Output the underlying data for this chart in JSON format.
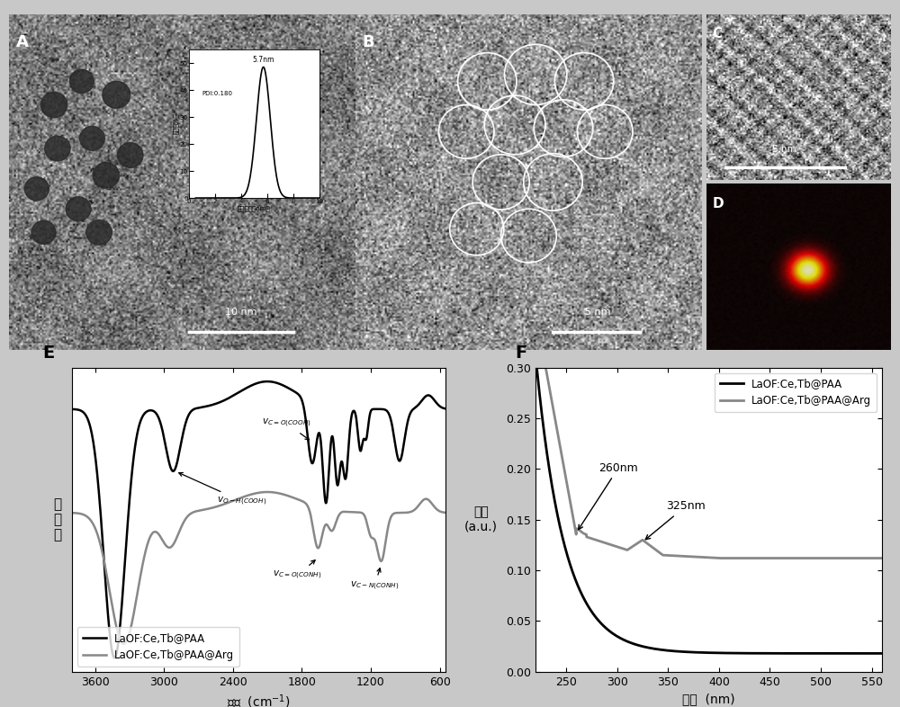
{
  "fig_bg": "#c8c8c8",
  "top_bg": "#909090",
  "E_xlabel": "波数  (cm$^{-1}$)",
  "E_ylabel": "透\n过\n率",
  "E_label": "E",
  "E_xticks": [
    3600,
    3000,
    2400,
    1800,
    1200,
    600
  ],
  "E_xlim_min": 3800,
  "E_xlim_max": 550,
  "E_legend1": "LaOF:Ce,Tb@PAA",
  "E_legend2": "LaOF:Ce,Tb@PAA@Arg",
  "F_xlabel": "波长  (nm)",
  "F_ylabel": "吸收\n(a.u.)",
  "F_label": "F",
  "F_xticks": [
    250,
    300,
    350,
    400,
    450,
    500,
    550
  ],
  "F_xlim": [
    220,
    560
  ],
  "F_ylim": [
    0.0,
    0.3
  ],
  "F_yticks": [
    0.0,
    0.05,
    0.1,
    0.15,
    0.2,
    0.25,
    0.3
  ],
  "F_legend1": "LaOF:Ce,Tb@PAA",
  "F_legend2": "LaOF:Ce,Tb@PAA@Arg",
  "F_annot1": "260nm",
  "F_annot2": "325nm",
  "inset_xlabel": "水合粒径（nm）",
  "inset_ylabel": "分布（%）",
  "inset_peak": "5.7nm",
  "inset_pdi": "PDI:0.180"
}
